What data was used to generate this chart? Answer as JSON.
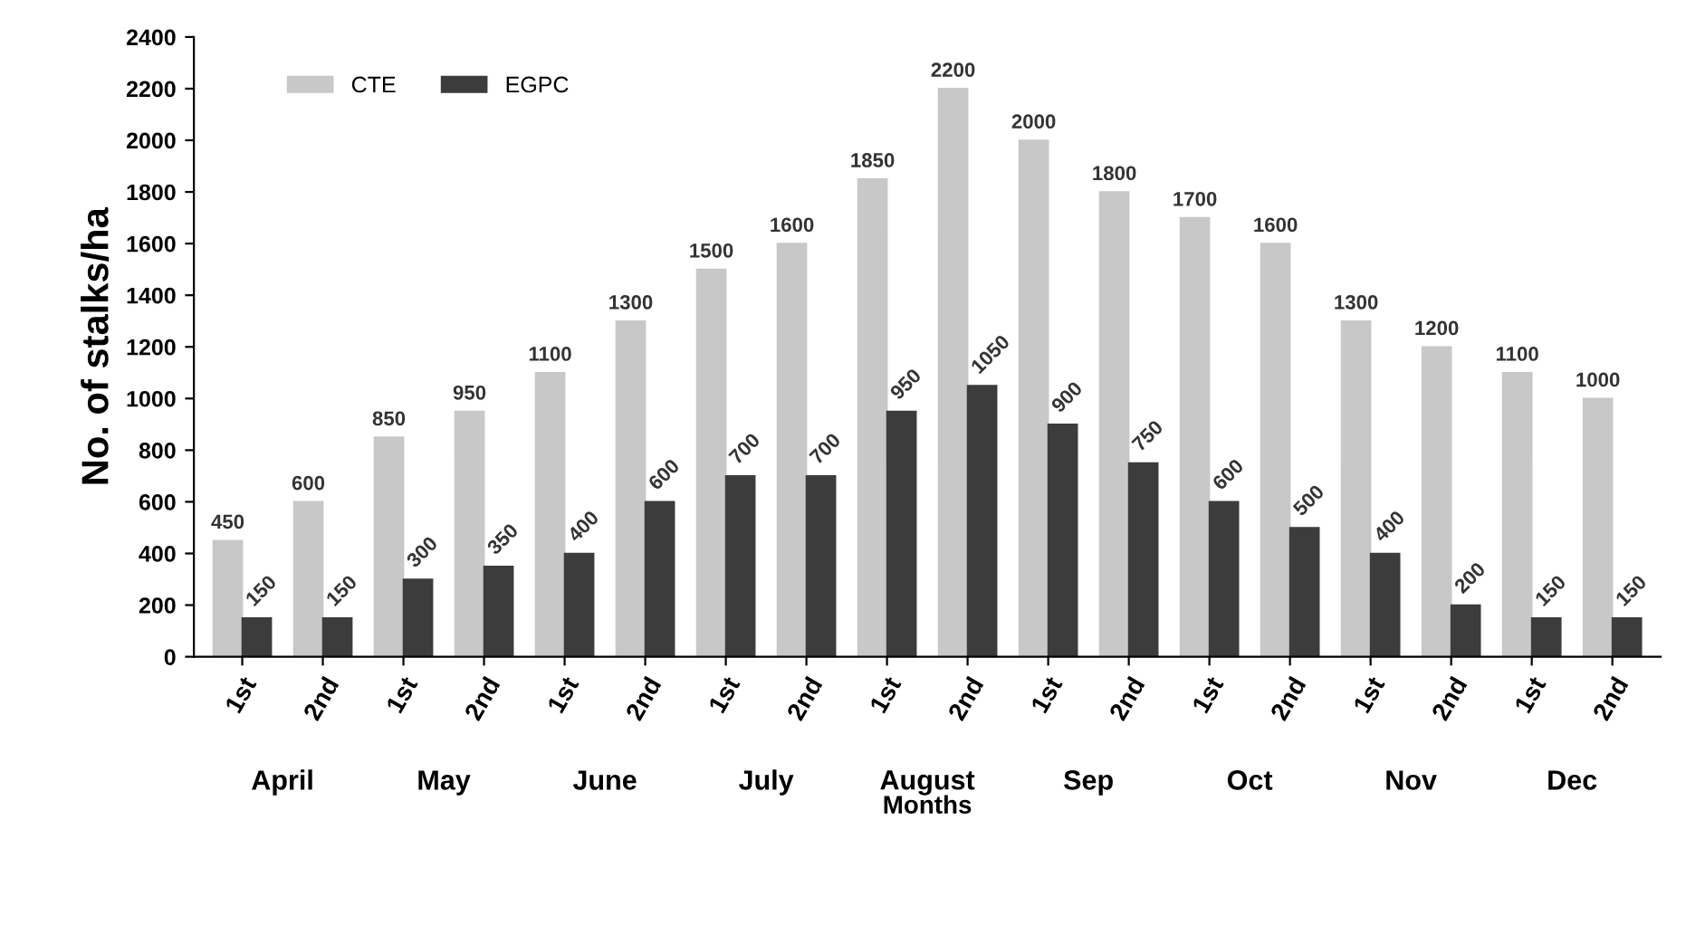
{
  "chart_data": {
    "type": "bar",
    "xlabel": "Months",
    "ylabel": "No. of stalks/ha",
    "categories": [
      "1st",
      "2nd",
      "1st",
      "2nd",
      "1st",
      "2nd",
      "1st",
      "2nd",
      "1st",
      "2nd",
      "1st",
      "2nd",
      "1st",
      "2nd",
      "1st",
      "2nd",
      "1st",
      "2nd"
    ],
    "series": [
      {
        "name": "CTE",
        "color": "#c8c8c8",
        "values": [
          450,
          600,
          850,
          950,
          1100,
          1300,
          1500,
          1600,
          1850,
          2200,
          2000,
          1800,
          1700,
          1600,
          1300,
          1200,
          1100,
          1000
        ]
      },
      {
        "name": "EGPC",
        "color": "#3c3c3c",
        "values": [
          150,
          150,
          300,
          350,
          400,
          600,
          700,
          700,
          950,
          1050,
          900,
          750,
          600,
          500,
          400,
          200,
          150,
          150
        ]
      }
    ],
    "annotations": [
      "April",
      "May",
      "June",
      "July",
      "August",
      "Sep",
      "Oct",
      "Nov",
      "Dec"
    ],
    "ylim": [
      0,
      2400
    ],
    "yticks": [
      0,
      200,
      400,
      600,
      800,
      1000,
      1200,
      1400,
      1600,
      1800,
      2000,
      2200,
      2400
    ],
    "data_labels": true,
    "grid": false,
    "legend": "top left"
  }
}
